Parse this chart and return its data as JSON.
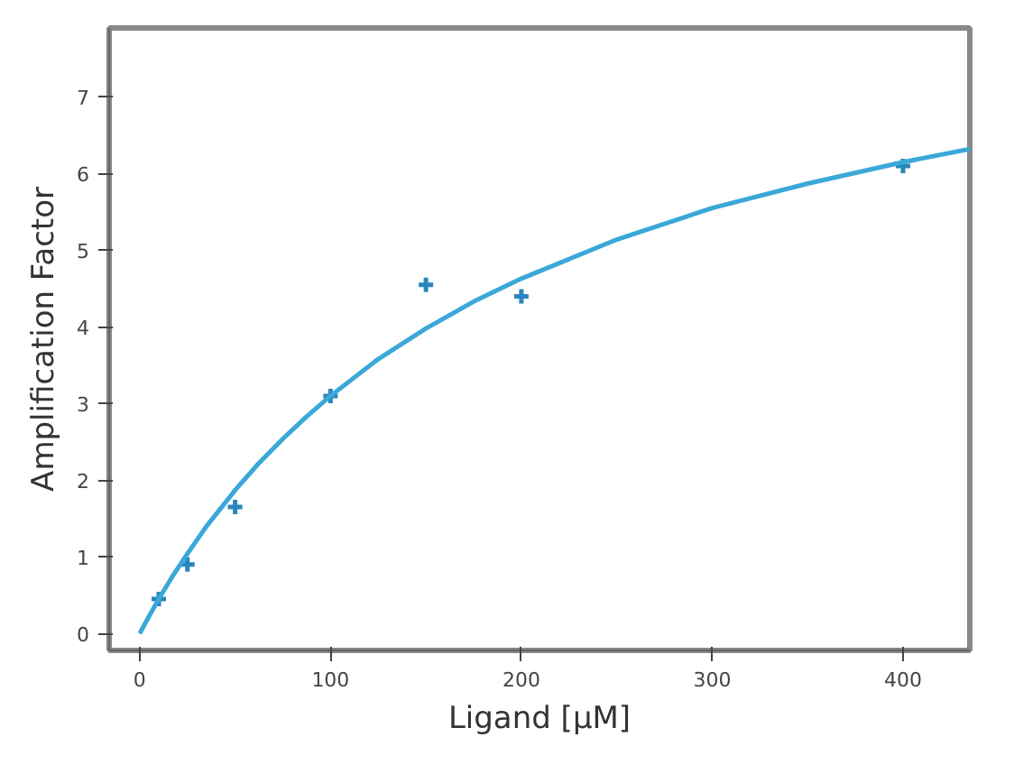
{
  "chart_data": {
    "type": "scatter",
    "xlabel": "Ligand [µM]",
    "ylabel": "Amplification Factor",
    "xlim": [
      -16,
      435
    ],
    "ylim": [
      -0.22,
      7.9
    ],
    "xticks": [
      0,
      100,
      200,
      300,
      400
    ],
    "yticks": [
      0,
      1,
      2,
      3,
      4,
      5,
      6,
      7
    ],
    "grid": false,
    "series": [
      {
        "color": "#2a86bd",
        "marker": "cross",
        "x": [
          10,
          25,
          50,
          100,
          150,
          200,
          400
        ],
        "values": [
          0.45,
          0.9,
          1.65,
          3.1,
          4.55,
          4.4,
          6.1
        ]
      },
      {
        "type": "line",
        "color": "#3aa8d8",
        "line_style": "solid",
        "x": [
          0,
          5,
          10,
          17,
          25,
          35,
          50,
          62,
          75,
          87,
          100,
          125,
          150,
          175,
          200,
          250,
          300,
          350,
          400,
          435
        ],
        "values": [
          0,
          0.23,
          0.45,
          0.74,
          1.04,
          1.4,
          1.87,
          2.21,
          2.54,
          2.82,
          3.1,
          3.58,
          3.98,
          4.33,
          4.63,
          5.14,
          5.55,
          5.87,
          6.15,
          6.32
        ]
      }
    ]
  }
}
